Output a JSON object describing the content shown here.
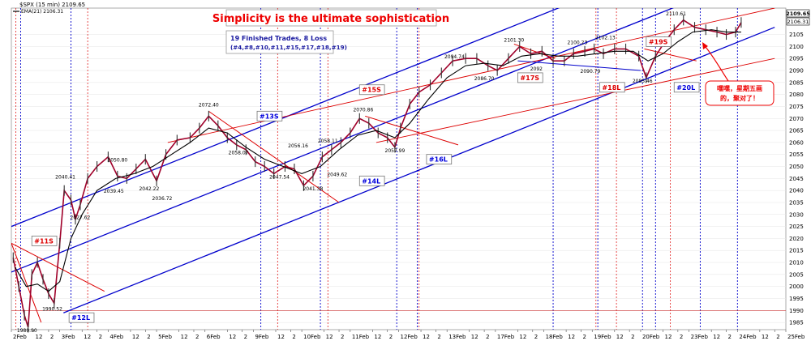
{
  "chart_data": {
    "type": "line",
    "symbol_label": "$SPX (15 min) 2109.65",
    "ema_label": "EMA(21) 2106.31",
    "title": "Simplicity is the ultimate sophistication",
    "summary": [
      "19 Finished Trades, 8 Loss",
      "(#4,#8,#10,#11,#15,#17,#18,#19)"
    ],
    "note": [
      "嘿嘿，星期五画",
      "的，聚对了！"
    ],
    "ylim": [
      1982,
      2116
    ],
    "y_ticks": [
      1985,
      1990,
      1995,
      2000,
      2005,
      2010,
      2015,
      2020,
      2025,
      2030,
      2035,
      2040,
      2045,
      2050,
      2055,
      2060,
      2065,
      2070,
      2075,
      2080,
      2085,
      2090,
      2095,
      2100,
      2105
    ],
    "x_ticks": [
      {
        "label": "2Feb",
        "x": 0
      },
      {
        "label": "12",
        "x": 0.6
      },
      {
        "label": "2",
        "x": 1.0
      },
      {
        "label": "3Feb",
        "x": 1.3
      },
      {
        "label": "12",
        "x": 1.9
      },
      {
        "label": "2",
        "x": 2.3
      },
      {
        "label": "4Feb",
        "x": 2.6
      },
      {
        "label": "12",
        "x": 3.2
      },
      {
        "label": "2",
        "x": 3.6
      },
      {
        "label": "5Feb",
        "x": 3.9
      },
      {
        "label": "12",
        "x": 4.5
      },
      {
        "label": "2",
        "x": 4.9
      },
      {
        "label": "6Feb",
        "x": 5.2
      },
      {
        "label": "12",
        "x": 5.8
      },
      {
        "label": "2",
        "x": 6.2
      },
      {
        "label": "9Feb",
        "x": 6.5
      },
      {
        "label": "12",
        "x": 7.1
      },
      {
        "label": "2",
        "x": 7.5
      },
      {
        "label": "10Feb",
        "x": 7.8
      },
      {
        "label": "12",
        "x": 8.4
      },
      {
        "label": "2",
        "x": 8.8
      },
      {
        "label": "11Feb",
        "x": 9.1
      },
      {
        "label": "12",
        "x": 9.7
      },
      {
        "label": "2",
        "x": 10.1
      },
      {
        "label": "12Feb",
        "x": 10.4
      },
      {
        "label": "12",
        "x": 11.0
      },
      {
        "label": "2",
        "x": 11.4
      },
      {
        "label": "13Feb",
        "x": 11.7
      },
      {
        "label": "12",
        "x": 12.3
      },
      {
        "label": "2",
        "x": 12.7
      },
      {
        "label": "17Feb",
        "x": 13.0
      },
      {
        "label": "12",
        "x": 13.6
      },
      {
        "label": "2",
        "x": 14.0
      },
      {
        "label": "18Feb",
        "x": 14.3
      },
      {
        "label": "12",
        "x": 14.9
      },
      {
        "label": "2",
        "x": 15.3
      },
      {
        "label": "19Feb",
        "x": 15.6
      },
      {
        "label": "12",
        "x": 16.2
      },
      {
        "label": "2",
        "x": 16.6
      },
      {
        "label": "20Feb",
        "x": 16.9
      },
      {
        "label": "12",
        "x": 17.5
      },
      {
        "label": "2",
        "x": 17.9
      },
      {
        "label": "23Feb",
        "x": 18.2
      },
      {
        "label": "12",
        "x": 18.8
      },
      {
        "label": "2",
        "x": 19.2
      },
      {
        "label": "24Feb",
        "x": 19.5
      },
      {
        "label": "12",
        "x": 20.1
      },
      {
        "label": "2",
        "x": 20.5
      },
      {
        "label": "25Feb",
        "x": 20.8
      }
    ],
    "price_path": [
      [
        0.05,
        2012
      ],
      [
        0.2,
        2000
      ],
      [
        0.35,
        1988
      ],
      [
        0.45,
        1983
      ],
      [
        0.55,
        2005
      ],
      [
        0.7,
        2010
      ],
      [
        0.85,
        2003
      ],
      [
        1.0,
        1997
      ],
      [
        1.15,
        1993
      ],
      [
        1.3,
        2018
      ],
      [
        1.42,
        2040
      ],
      [
        1.6,
        2036
      ],
      [
        1.72,
        2028
      ],
      [
        1.85,
        2034
      ],
      [
        2.05,
        2045
      ],
      [
        2.3,
        2050
      ],
      [
        2.6,
        2054
      ],
      [
        2.85,
        2046
      ],
      [
        3.1,
        2045
      ],
      [
        3.35,
        2049
      ],
      [
        3.6,
        2053
      ],
      [
        3.9,
        2044
      ],
      [
        4.15,
        2055
      ],
      [
        4.45,
        2061
      ],
      [
        4.8,
        2062
      ],
      [
        5.05,
        2066
      ],
      [
        5.3,
        2071
      ],
      [
        5.55,
        2067
      ],
      [
        5.8,
        2062
      ],
      [
        6.05,
        2059
      ],
      [
        6.3,
        2057
      ],
      [
        6.55,
        2052
      ],
      [
        6.8,
        2050
      ],
      [
        7.05,
        2047
      ],
      [
        7.35,
        2050
      ],
      [
        7.6,
        2049
      ],
      [
        7.85,
        2042
      ],
      [
        8.1,
        2046
      ],
      [
        8.35,
        2054
      ],
      [
        8.6,
        2057
      ],
      [
        8.85,
        2060
      ],
      [
        9.1,
        2064
      ],
      [
        9.35,
        2070
      ],
      [
        9.6,
        2068
      ],
      [
        9.85,
        2064
      ],
      [
        10.1,
        2062
      ],
      [
        10.3,
        2058
      ],
      [
        10.45,
        2066
      ],
      [
        10.7,
        2076
      ],
      [
        10.95,
        2081
      ],
      [
        11.25,
        2084
      ],
      [
        11.55,
        2089
      ],
      [
        11.85,
        2094
      ],
      [
        12.2,
        2095
      ],
      [
        12.5,
        2095
      ],
      [
        12.8,
        2092
      ],
      [
        13.05,
        2090
      ],
      [
        13.35,
        2095
      ],
      [
        13.65,
        2100
      ],
      [
        13.95,
        2097
      ],
      [
        14.25,
        2098
      ],
      [
        14.55,
        2094
      ],
      [
        14.85,
        2094
      ],
      [
        15.1,
        2097
      ],
      [
        15.4,
        2098
      ],
      [
        15.65,
        2099
      ],
      [
        15.9,
        2097
      ],
      [
        16.2,
        2099
      ],
      [
        16.5,
        2099
      ],
      [
        16.85,
        2096
      ],
      [
        17.05,
        2087
      ],
      [
        17.3,
        2096
      ],
      [
        17.55,
        2102
      ],
      [
        17.8,
        2107
      ],
      [
        18.05,
        2111
      ],
      [
        18.35,
        2108
      ],
      [
        18.65,
        2107
      ],
      [
        18.95,
        2106
      ],
      [
        19.2,
        2105
      ],
      [
        19.45,
        2106
      ],
      [
        19.6,
        2110
      ]
    ],
    "ema_path": [
      [
        0.1,
        2008
      ],
      [
        0.4,
        2000
      ],
      [
        0.7,
        2001
      ],
      [
        1.0,
        1998
      ],
      [
        1.3,
        2002
      ],
      [
        1.6,
        2020
      ],
      [
        1.9,
        2030
      ],
      [
        2.3,
        2040
      ],
      [
        2.8,
        2045
      ],
      [
        3.3,
        2047
      ],
      [
        3.8,
        2050
      ],
      [
        4.3,
        2055
      ],
      [
        4.8,
        2060
      ],
      [
        5.3,
        2066
      ],
      [
        5.8,
        2064
      ],
      [
        6.3,
        2058
      ],
      [
        6.8,
        2053
      ],
      [
        7.3,
        2050
      ],
      [
        7.8,
        2047
      ],
      [
        8.3,
        2050
      ],
      [
        8.8,
        2057
      ],
      [
        9.3,
        2063
      ],
      [
        9.8,
        2065
      ],
      [
        10.3,
        2062
      ],
      [
        10.7,
        2068
      ],
      [
        11.2,
        2078
      ],
      [
        11.7,
        2087
      ],
      [
        12.2,
        2092
      ],
      [
        12.7,
        2093
      ],
      [
        13.2,
        2092
      ],
      [
        13.7,
        2096
      ],
      [
        14.2,
        2097
      ],
      [
        14.7,
        2096
      ],
      [
        15.2,
        2096
      ],
      [
        15.7,
        2097
      ],
      [
        16.2,
        2098
      ],
      [
        16.7,
        2098
      ],
      [
        17.1,
        2094
      ],
      [
        17.5,
        2097
      ],
      [
        17.9,
        2102
      ],
      [
        18.3,
        2106
      ],
      [
        18.8,
        2107
      ],
      [
        19.2,
        2106
      ],
      [
        19.6,
        2106
      ]
    ],
    "price_labels": [
      {
        "text": "1980.90",
        "x": 0.42,
        "y": 1981
      },
      {
        "text": "1990.52",
        "x": 1.1,
        "y": 1990
      },
      {
        "text": "2040.41",
        "x": 1.45,
        "y": 2045
      },
      {
        "text": "2027.62",
        "x": 1.85,
        "y": 2028
      },
      {
        "text": "2039.45",
        "x": 2.75,
        "y": 2039
      },
      {
        "text": "2050.80",
        "x": 2.85,
        "y": 2052
      },
      {
        "text": "2042.22",
        "x": 3.7,
        "y": 2040
      },
      {
        "text": "2036.72",
        "x": 4.05,
        "y": 2036
      },
      {
        "text": "2072.40",
        "x": 5.3,
        "y": 2075
      },
      {
        "text": "2058.07",
        "x": 6.1,
        "y": 2055
      },
      {
        "text": "2047.54",
        "x": 7.2,
        "y": 2045
      },
      {
        "text": "2056.16",
        "x": 7.7,
        "y": 2058
      },
      {
        "text": "2041.38",
        "x": 8.1,
        "y": 2040
      },
      {
        "text": "2058.11",
        "x": 8.5,
        "y": 2060
      },
      {
        "text": "2049.62",
        "x": 8.75,
        "y": 2046
      },
      {
        "text": "2070.86",
        "x": 9.45,
        "y": 2073
      },
      {
        "text": "2057.99",
        "x": 10.3,
        "y": 2056
      },
      {
        "text": "2094.74",
        "x": 11.9,
        "y": 2095
      },
      {
        "text": "2086.70",
        "x": 12.7,
        "y": 2086
      },
      {
        "text": "2101.30",
        "x": 13.5,
        "y": 2102
      },
      {
        "text": "2092",
        "x": 14.1,
        "y": 2090
      },
      {
        "text": "2100.23",
        "x": 15.2,
        "y": 2101
      },
      {
        "text": "2102.13",
        "x": 15.95,
        "y": 2103
      },
      {
        "text": "2090.79",
        "x": 15.55,
        "y": 2089
      },
      {
        "text": "2085.46",
        "x": 16.95,
        "y": 2085
      },
      {
        "text": "2110.61",
        "x": 17.85,
        "y": 2113
      }
    ],
    "trades": [
      {
        "label": "#11S",
        "color": "#dd0000",
        "x": 0.55,
        "y": 2019
      },
      {
        "label": "#12L",
        "color": "#0000dd",
        "x": 1.55,
        "y": 1987
      },
      {
        "label": "#13S",
        "color": "#0000dd",
        "x": 6.6,
        "y": 2071
      },
      {
        "label": "#14L",
        "color": "#0000dd",
        "x": 9.35,
        "y": 2044
      },
      {
        "label": "#15S",
        "color": "#dd0000",
        "x": 9.35,
        "y": 2082
      },
      {
        "label": "#16L",
        "color": "#0000dd",
        "x": 11.15,
        "y": 2053
      },
      {
        "label": "#17S",
        "color": "#dd0000",
        "x": 13.6,
        "y": 2087
      },
      {
        "label": "#18L",
        "color": "#dd0000",
        "x": 15.8,
        "y": 2083
      },
      {
        "label": "#19S",
        "color": "#dd0000",
        "x": 17.05,
        "y": 2102
      },
      {
        "label": "#20L",
        "color": "#0000dd",
        "x": 17.8,
        "y": 2083
      }
    ],
    "red_vlines": [
      0.12,
      2.05,
      7.15,
      8.5,
      10.95,
      15.7,
      16.25,
      17.7
    ],
    "blue_vlines": [
      0.25,
      1.6,
      6.7,
      8.3,
      10.35,
      10.9,
      14.55,
      15.75,
      16.95,
      17.3,
      18.5,
      19.5
    ],
    "red_hline": 1990,
    "channels": [
      {
        "color": "#0000cc",
        "w": 1.3,
        "x1": 0,
        "y1": 2025,
        "x2": 20.5,
        "y2": 2152
      },
      {
        "color": "#0000cc",
        "w": 1.3,
        "x1": 0,
        "y1": 2006,
        "x2": 20.5,
        "y2": 2133
      },
      {
        "color": "#0000cc",
        "w": 1.3,
        "x1": 1.4,
        "y1": 1989,
        "x2": 20.5,
        "y2": 2108
      },
      {
        "color": "#dd0000",
        "w": 0.9,
        "x1": 4.2,
        "y1": 2060,
        "x2": 20.5,
        "y2": 2116
      },
      {
        "color": "#dd0000",
        "w": 0.9,
        "x1": 9.8,
        "y1": 2060,
        "x2": 20.5,
        "y2": 2095
      },
      {
        "color": "#dd0000",
        "w": 1.0,
        "x1": 0,
        "y1": 2018,
        "x2": 2.5,
        "y2": 1998
      },
      {
        "color": "#dd0000",
        "w": 1.0,
        "x1": 0,
        "y1": 2018,
        "x2": 0.8,
        "y2": 1985
      },
      {
        "color": "#dd0000",
        "w": 1.0,
        "x1": 5.3,
        "y1": 2073,
        "x2": 8.8,
        "y2": 2035
      },
      {
        "color": "#dd0000",
        "w": 1.0,
        "x1": 9.5,
        "y1": 2071,
        "x2": 12.0,
        "y2": 2059
      },
      {
        "color": "#dd0000",
        "w": 1.0,
        "x1": 13.5,
        "y1": 2101,
        "x2": 14.6,
        "y2": 2095
      },
      {
        "color": "#dd0000",
        "w": 1.0,
        "x1": 17.0,
        "y1": 2099,
        "x2": 18.4,
        "y2": 2094
      },
      {
        "color": "#0000cc",
        "w": 1.0,
        "x1": 13.6,
        "y1": 2094,
        "x2": 16.9,
        "y2": 2090
      }
    ],
    "last_values": {
      "price": "2109.65",
      "ema": "2106.31"
    }
  }
}
